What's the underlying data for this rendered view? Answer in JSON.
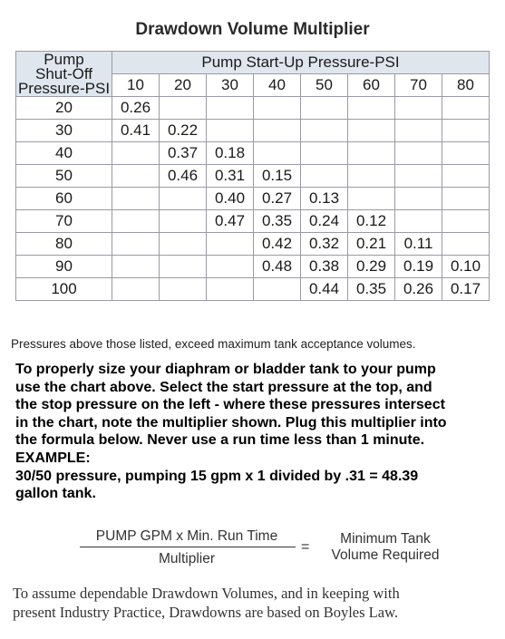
{
  "title": "Drawdown Volume Multiplier",
  "table": {
    "corner_lines": [
      "Pump",
      "Shut-Off",
      "Pressure-PSI"
    ],
    "span_header": "Pump Start-Up Pressure-PSI",
    "start_pressures": [
      "10",
      "20",
      "30",
      "40",
      "50",
      "60",
      "70",
      "80"
    ],
    "rows": [
      {
        "stop": "20",
        "cells": [
          "0.26",
          "",
          "",
          "",
          "",
          "",
          "",
          ""
        ]
      },
      {
        "stop": "30",
        "cells": [
          "0.41",
          "0.22",
          "",
          "",
          "",
          "",
          "",
          ""
        ]
      },
      {
        "stop": "40",
        "cells": [
          "",
          "0.37",
          "0.18",
          "",
          "",
          "",
          "",
          ""
        ]
      },
      {
        "stop": "50",
        "cells": [
          "",
          "0.46",
          "0.31",
          "0.15",
          "",
          "",
          "",
          ""
        ]
      },
      {
        "stop": "60",
        "cells": [
          "",
          "",
          "0.40",
          "0.27",
          "0.13",
          "",
          "",
          ""
        ]
      },
      {
        "stop": "70",
        "cells": [
          "",
          "",
          "0.47",
          "0.35",
          "0.24",
          "0.12",
          "",
          ""
        ]
      },
      {
        "stop": "80",
        "cells": [
          "",
          "",
          "",
          "0.42",
          "0.32",
          "0.21",
          "0.11",
          ""
        ]
      },
      {
        "stop": "90",
        "cells": [
          "",
          "",
          "",
          "0.48",
          "0.38",
          "0.29",
          "0.19",
          "0.10"
        ]
      },
      {
        "stop": "100",
        "cells": [
          "",
          "",
          "",
          "",
          "0.44",
          "0.35",
          "0.26",
          "0.17"
        ]
      }
    ]
  },
  "note": "Pressures above those listed, exceed maximum tank acceptance volumes.",
  "instructions": [
    "To properly size your diaphram or bladder tank to your pump",
    "use the chart above. Select the start pressure at the top, and",
    "the stop pressure on the left - where these pressures intersect",
    "in the chart, note the multiplier shown. Plug this multiplier into",
    "the formula below. Never use a run time less than 1 minute.",
    "EXAMPLE:",
    "30/50 pressure, pumping 15 gpm x 1 divided by .31 = 48.39",
    "gallon tank."
  ],
  "formula": {
    "numerator": "PUMP GPM x Min. Run Time",
    "denominator": "Multiplier",
    "equals": "=",
    "result_lines": [
      "Minimum Tank",
      "Volume Required"
    ]
  },
  "footer": [
    "To assume dependable Drawdown Volumes, and in keeping with",
    "present Industry Practice, Drawdowns are based on Boyles Law."
  ]
}
